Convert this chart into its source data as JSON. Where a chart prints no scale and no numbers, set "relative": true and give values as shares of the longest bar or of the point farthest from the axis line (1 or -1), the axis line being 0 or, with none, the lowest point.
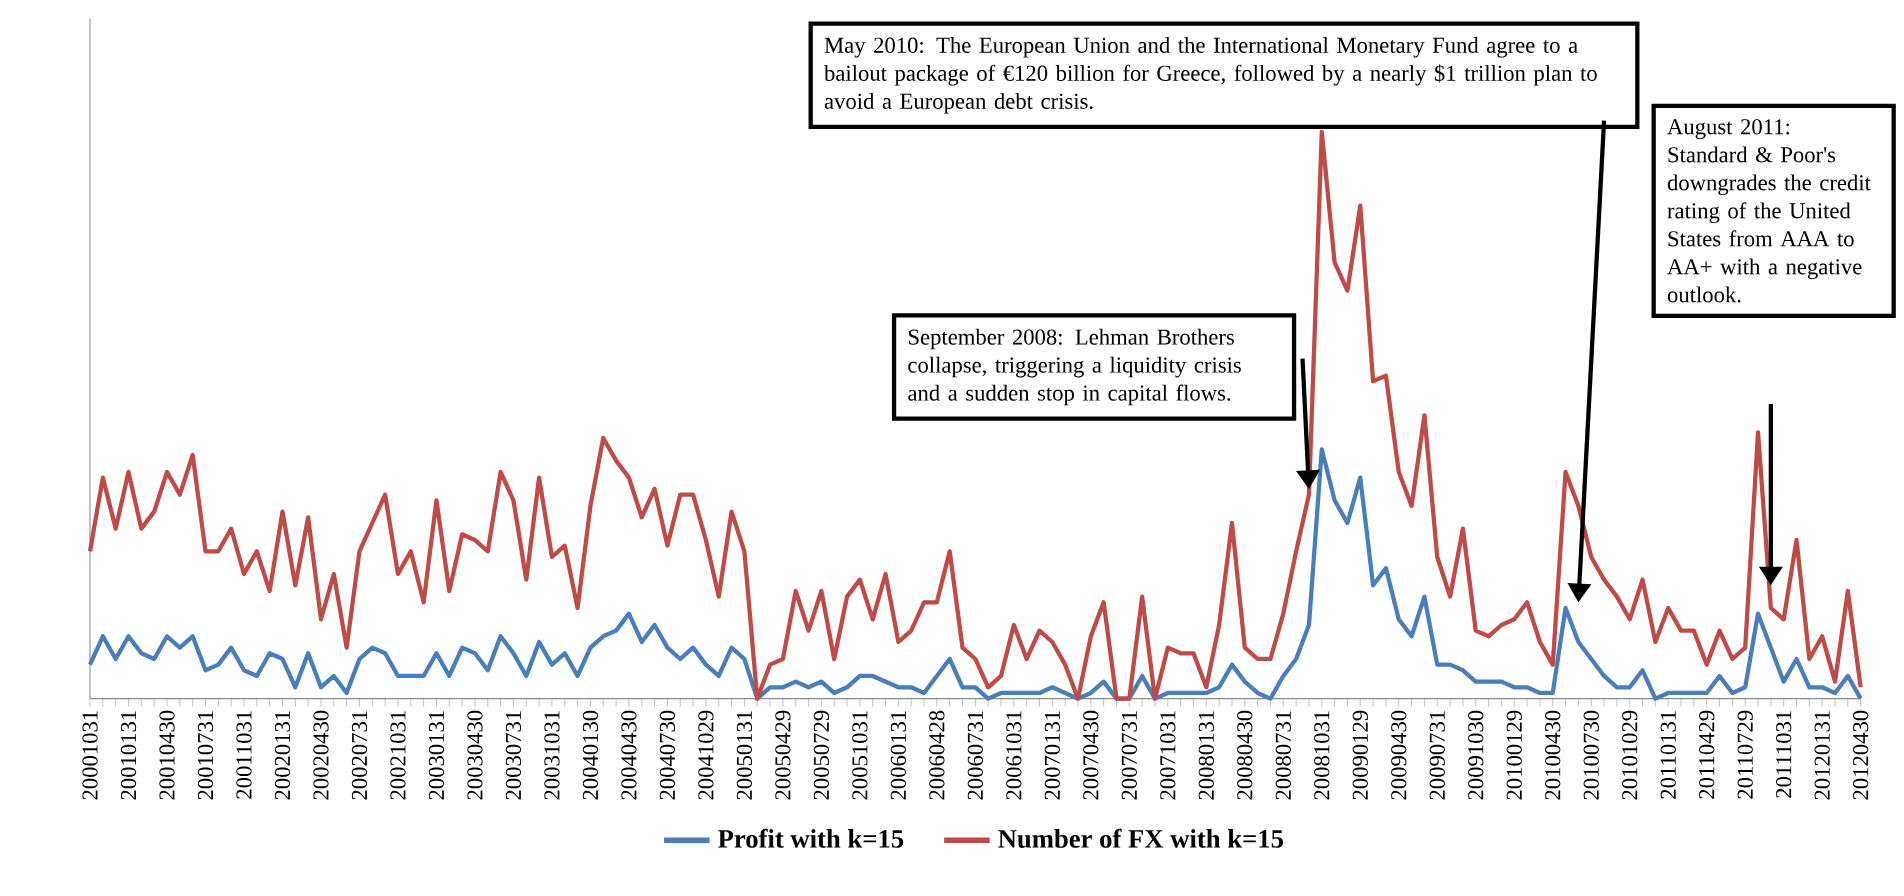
{
  "chart_data": {
    "type": "line",
    "relative": true,
    "legend": "bottom",
    "categories": [
      "20001031",
      null,
      null,
      "20010131",
      null,
      null,
      "20010430",
      null,
      null,
      "20010731",
      null,
      null,
      "20011031",
      null,
      null,
      "20020131",
      null,
      null,
      "20020430",
      null,
      null,
      "20020731",
      null,
      null,
      "20021031",
      null,
      null,
      "20030131",
      null,
      null,
      "20030430",
      null,
      null,
      "20030731",
      null,
      null,
      "20031031",
      null,
      null,
      "20040130",
      null,
      null,
      "20040430",
      null,
      null,
      "20040730",
      null,
      null,
      "20041029",
      null,
      null,
      "20050131",
      null,
      null,
      "20050429",
      null,
      null,
      "20050729",
      null,
      null,
      "20051031",
      null,
      null,
      "20060131",
      null,
      null,
      "20060428",
      null,
      null,
      "20060731",
      null,
      null,
      "20061031",
      null,
      null,
      "20070131",
      null,
      null,
      "20070430",
      null,
      null,
      "20070731",
      null,
      null,
      "20071031",
      null,
      null,
      "20080131",
      null,
      null,
      "20080430",
      null,
      null,
      "20080731",
      null,
      null,
      "20081031",
      null,
      null,
      "20090129",
      null,
      null,
      "20090430",
      null,
      null,
      "20090731",
      null,
      null,
      "20091030",
      null,
      null,
      "20100129",
      null,
      null,
      "20100430",
      null,
      null,
      "20100730",
      null,
      null,
      "20101029",
      null,
      null,
      "20110131",
      null,
      null,
      "20110429",
      null,
      null,
      "20110729",
      null,
      null,
      "20111031",
      null,
      null,
      "20120131",
      null,
      null,
      "20120430"
    ],
    "series": [
      {
        "name": "Profit with k=15",
        "color": "#4a7ebb",
        "values": [
          0.06,
          0.11,
          0.07,
          0.11,
          0.08,
          0.07,
          0.11,
          0.09,
          0.11,
          0.05,
          0.06,
          0.09,
          0.05,
          0.04,
          0.08,
          0.07,
          0.02,
          0.08,
          0.02,
          0.04,
          0.01,
          0.07,
          0.09,
          0.08,
          0.04,
          0.04,
          0.04,
          0.08,
          0.04,
          0.09,
          0.08,
          0.05,
          0.11,
          0.08,
          0.04,
          0.1,
          0.06,
          0.08,
          0.04,
          0.09,
          0.11,
          0.12,
          0.15,
          0.1,
          0.13,
          0.09,
          0.07,
          0.09,
          0.06,
          0.04,
          0.09,
          0.07,
          0.0,
          0.02,
          0.02,
          0.03,
          0.02,
          0.03,
          0.01,
          0.02,
          0.04,
          0.04,
          0.03,
          0.02,
          0.02,
          0.01,
          0.04,
          0.07,
          0.02,
          0.02,
          0.0,
          0.01,
          0.01,
          0.01,
          0.01,
          0.02,
          0.01,
          0,
          0.01,
          0.03,
          0,
          0,
          0.04,
          0,
          0.01,
          0.01,
          0.01,
          0.01,
          0.02,
          0.06,
          0.03,
          0.01,
          0.0,
          0.04,
          0.07,
          0.13,
          0.44,
          0.35,
          0.31,
          0.39,
          0.2,
          0.23,
          0.14,
          0.11,
          0.18,
          0.06,
          0.06,
          0.05,
          0.03,
          0.03,
          0.03,
          0.02,
          0.02,
          0.01,
          0.01,
          0.16,
          0.1,
          0.07,
          0.04,
          0.02,
          0.02,
          0.05,
          0.0,
          0.01,
          0.01,
          0.01,
          0.01,
          0.04,
          0.01,
          0.02,
          0.15,
          0.09,
          0.03,
          0.07,
          0.02,
          0.02,
          0.01,
          0.04,
          0.0
        ]
      },
      {
        "name": "Number of FX with k=15",
        "color": "#be4b48",
        "values": [
          0.26,
          0.39,
          0.3,
          0.4,
          0.3,
          0.33,
          0.4,
          0.36,
          0.43,
          0.26,
          0.26,
          0.3,
          0.22,
          0.26,
          0.19,
          0.33,
          0.2,
          0.32,
          0.14,
          0.22,
          0.09,
          0.26,
          0.31,
          0.36,
          0.22,
          0.26,
          0.17,
          0.35,
          0.19,
          0.29,
          0.28,
          0.26,
          0.4,
          0.35,
          0.21,
          0.39,
          0.25,
          0.27,
          0.16,
          0.34,
          0.46,
          0.42,
          0.39,
          0.32,
          0.37,
          0.27,
          0.36,
          0.36,
          0.28,
          0.18,
          0.33,
          0.26,
          0,
          0.06,
          0.07,
          0.19,
          0.12,
          0.19,
          0.07,
          0.18,
          0.21,
          0.14,
          0.22,
          0.1,
          0.12,
          0.17,
          0.17,
          0.26,
          0.09,
          0.07,
          0.02,
          0.04,
          0.13,
          0.07,
          0.12,
          0.1,
          0.06,
          0.0,
          0.11,
          0.17,
          0.0,
          0.0,
          0.18,
          0.0,
          0.09,
          0.08,
          0.08,
          0.02,
          0.13,
          0.31,
          0.09,
          0.07,
          0.07,
          0.15,
          0.26,
          0.36,
          1.0,
          0.77,
          0.72,
          0.87,
          0.56,
          0.57,
          0.4,
          0.34,
          0.5,
          0.25,
          0.18,
          0.3,
          0.12,
          0.11,
          0.13,
          0.14,
          0.17,
          0.1,
          0.06,
          0.4,
          0.34,
          0.25,
          0.21,
          0.18,
          0.14,
          0.21,
          0.1,
          0.16,
          0.12,
          0.12,
          0.06,
          0.12,
          0.07,
          0.09,
          0.47,
          0.16,
          0.14,
          0.28,
          0.07,
          0.11,
          0.03,
          0.19,
          0.02
        ]
      }
    ],
    "annotations": [
      "May 2010: The European Union and the International Monetary Fund agree to a bailout package of €120 billion for Greece, followed by a nearly $1 trillion plan to avoid a European debt crisis.",
      "September 2008: Lehman Brothers collapse, triggering a liquidity crisis and a sudden stop in capital flows.",
      "August 2011: Standard & Poor's downgrades the credit rating of the United States from AAA to AA+ with a negative outlook."
    ]
  }
}
